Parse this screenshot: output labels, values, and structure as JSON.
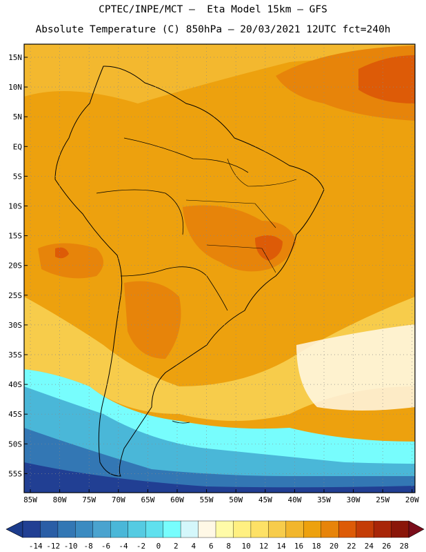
{
  "header": {
    "line1": "CPTEC/INPE/MCT –  Eta Model 15km – GFS",
    "line2": "Absolute Temperature (C) 850hPa – 20/03/2021 12UTC fct=240h"
  },
  "axes": {
    "lat_labels": [
      "15N",
      "10N",
      "5N",
      "EQ",
      "5S",
      "10S",
      "15S",
      "20S",
      "25S",
      "30S",
      "35S",
      "40S",
      "45S",
      "50S",
      "55S"
    ],
    "lon_labels": [
      "85W",
      "80W",
      "75W",
      "70W",
      "65W",
      "60W",
      "55W",
      "50W",
      "45W",
      "40W",
      "35W",
      "30W",
      "25W",
      "20W"
    ]
  },
  "colorbar": {
    "labels": [
      "-14",
      "-12",
      "-10",
      "-8",
      "-6",
      "-4",
      "-2",
      "0",
      "2",
      "4",
      "6",
      "8",
      "10",
      "12",
      "14",
      "16",
      "18",
      "20",
      "22",
      "24",
      "26",
      "28"
    ],
    "under_color": "#1c3c8c",
    "over_color": "#7a0d1a",
    "colors": [
      "#213f93",
      "#2a5ea6",
      "#3377b4",
      "#3b8bc1",
      "#4aa3cf",
      "#4ab7d8",
      "#55cbe2",
      "#5fe0ee",
      "#77fdfd",
      "#d4f7fb",
      "#fff8e6",
      "#fffba8",
      "#fff081",
      "#fde166",
      "#f7cc4b",
      "#f2b62c",
      "#eda10e",
      "#e7840a",
      "#dd5b07",
      "#c43d07",
      "#a82608",
      "#8a1609"
    ]
  },
  "map": {
    "ocean_color": "#eda10e",
    "region_colors": {
      "warm_core": "#e7840a",
      "hot_core": "#dd5b07",
      "mild": "#f7cc4b",
      "cool": "#fff8e6",
      "cold_light": "#77fdfd",
      "cold": "#4ab7d8",
      "colder": "#3377b4",
      "coldest": "#213f93"
    }
  }
}
